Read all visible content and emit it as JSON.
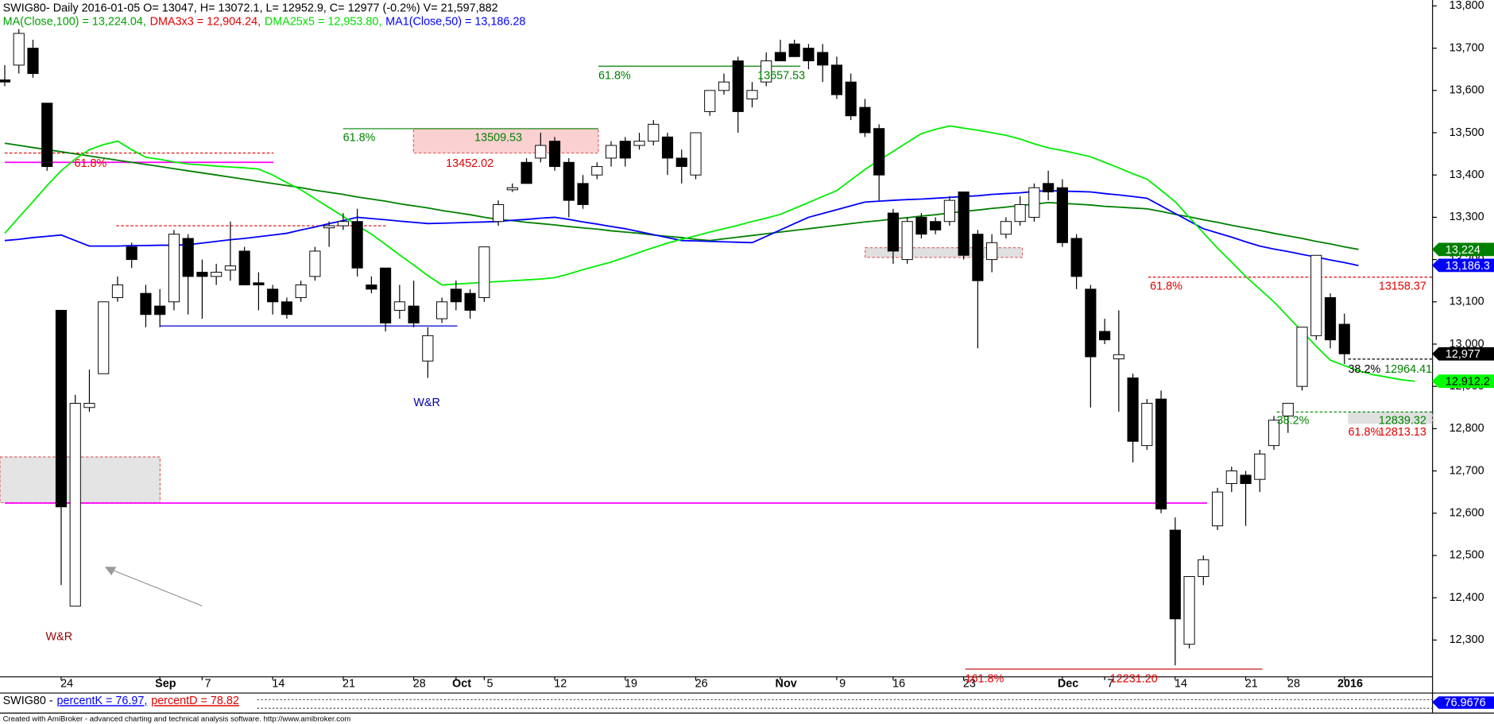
{
  "chart_data": {
    "type": "candlestick",
    "header": "SWIG80- Daily 2016-01-05 O= 13047, H= 13072.1, L= 12952.9, C= 12977 (-0.2%) V= 21,597,882",
    "legend": [
      {
        "text": "MA(Close,100) = 13,224.04,",
        "color": "#00a000"
      },
      {
        "text": "DMA3x3 = 12,904.24,",
        "color": "#e00000"
      },
      {
        "text": "DMA25x5 = 12,953.80,",
        "color": "#00dd00"
      },
      {
        "text": "MA1(Close,50) = 13,186.28",
        "color": "#0000ff"
      }
    ],
    "categories": [
      null,
      null,
      null,
      null,
      "24",
      null,
      null,
      null,
      null,
      null,
      null,
      "Sep",
      null,
      null,
      "7",
      null,
      null,
      null,
      null,
      "14",
      null,
      null,
      null,
      null,
      "21",
      null,
      null,
      null,
      null,
      "28",
      null,
      null,
      "Oct",
      null,
      "5",
      null,
      null,
      null,
      null,
      "12",
      null,
      null,
      null,
      null,
      "19",
      null,
      null,
      null,
      null,
      "26",
      null,
      null,
      null,
      null,
      null,
      "Nov",
      null,
      null,
      null,
      "9",
      null,
      null,
      null,
      "16",
      null,
      null,
      null,
      null,
      "23",
      null,
      null,
      null,
      null,
      null,
      null,
      "Dec",
      null,
      null,
      "7",
      null,
      null,
      null,
      null,
      "14",
      null,
      null,
      null,
      null,
      "21",
      null,
      null,
      "28",
      null,
      null,
      null,
      "2016",
      null,
      null,
      null,
      null,
      null
    ],
    "open": [
      13625,
      13660,
      13700,
      13570,
      13080,
      12380,
      12850,
      12930,
      13110,
      13230,
      13120,
      13090,
      13100,
      13250,
      13170,
      13160,
      13175,
      13220,
      13145,
      13130,
      13100,
      13110,
      13160,
      13275,
      13280,
      13290,
      13140,
      13180,
      13080,
      13090,
      12960,
      13060,
      13130,
      13120,
      13110,
      13290,
      13365,
      13430,
      13440,
      13480,
      13430,
      13380,
      13400,
      13440,
      13480,
      13470,
      13480,
      13490,
      13440,
      13400,
      13550,
      13600,
      13670,
      13580,
      13620,
      13690,
      13710,
      13700,
      13690,
      13660,
      13620,
      13560,
      13510,
      13310,
      13200,
      13300,
      13290,
      13290,
      13360,
      13260,
      13200,
      13260,
      13290,
      13300,
      13380,
      13370,
      13250,
      13130,
      13030,
      12965,
      12920,
      12760,
      12870,
      12560,
      12290,
      12450,
      12570,
      12670,
      12690,
      12680,
      12760,
      12830,
      12900,
      13020,
      13110,
      13047,
      null,
      null,
      null,
      null,
      null
    ],
    "high": [
      13660,
      13745,
      13720,
      13570,
      13080,
      12880,
      12940,
      13100,
      13160,
      13240,
      13140,
      13130,
      13270,
      13260,
      13200,
      13190,
      13290,
      13230,
      13170,
      13140,
      13110,
      13150,
      13230,
      13290,
      13310,
      13320,
      13160,
      13180,
      13140,
      13150,
      13040,
      13110,
      13150,
      13130,
      13230,
      13340,
      13380,
      13440,
      13500,
      13490,
      13440,
      13400,
      13430,
      13480,
      13490,
      13500,
      13530,
      13500,
      13460,
      13500,
      13600,
      13640,
      13680,
      13620,
      13690,
      13720,
      13720,
      13710,
      13710,
      13680,
      13640,
      13580,
      13520,
      13320,
      13300,
      13310,
      13300,
      13350,
      13360,
      13270,
      13260,
      13300,
      13350,
      13380,
      13410,
      13390,
      13260,
      13140,
      13060,
      13080,
      12930,
      12870,
      12890,
      12590,
      12450,
      12500,
      12660,
      12710,
      12700,
      12750,
      12830,
      12860,
      13040,
      13210,
      13120,
      13072.1,
      null,
      null,
      null,
      null,
      null
    ],
    "low": [
      13610,
      13640,
      13630,
      13410,
      12430,
      12380,
      12840,
      12930,
      13100,
      13180,
      13040,
      13040,
      13080,
      13070,
      13060,
      13140,
      13150,
      13140,
      13080,
      13070,
      13060,
      13100,
      13150,
      13230,
      13270,
      13160,
      13120,
      13030,
      13060,
      13040,
      12920,
      13050,
      13080,
      13060,
      13100,
      13280,
      13360,
      13380,
      13430,
      13410,
      13300,
      13320,
      13390,
      13420,
      13420,
      13460,
      13470,
      13400,
      13380,
      13390,
      13540,
      13590,
      13500,
      13560,
      13610,
      13670,
      13680,
      13650,
      13620,
      13580,
      13530,
      13490,
      13340,
      13190,
      13190,
      13250,
      13260,
      13280,
      13200,
      12990,
      13170,
      13250,
      13280,
      13290,
      13340,
      13230,
      13130,
      12850,
      13000,
      12840,
      12720,
      12750,
      12600,
      12240,
      12280,
      12430,
      12560,
      12650,
      12570,
      12650,
      12750,
      12790,
      12890,
      13010,
      12990,
      12952.9,
      null,
      null,
      null,
      null,
      null
    ],
    "close": [
      13620,
      13735,
      13640,
      13420,
      12615,
      12860,
      12860,
      13100,
      13140,
      13200,
      13070,
      13070,
      13260,
      13160,
      13160,
      13170,
      13185,
      13140,
      13140,
      13100,
      13070,
      13140,
      13220,
      13280,
      13290,
      13180,
      13130,
      13050,
      13100,
      13050,
      13020,
      13100,
      13100,
      13080,
      13230,
      13330,
      13370,
      13380,
      13470,
      13420,
      13340,
      13330,
      13420,
      13470,
      13440,
      13480,
      13520,
      13440,
      13420,
      13500,
      13600,
      13620,
      13550,
      13600,
      13670,
      13670,
      13680,
      13670,
      13660,
      13590,
      13540,
      13500,
      13400,
      13220,
      13290,
      13260,
      13270,
      13340,
      13210,
      13150,
      13240,
      13290,
      13330,
      13370,
      13360,
      13240,
      13160,
      12970,
      13010,
      12975,
      12770,
      12860,
      12610,
      12350,
      12450,
      12490,
      12650,
      12700,
      12670,
      12740,
      12820,
      12860,
      13040,
      13210,
      13010,
      12977,
      null,
      null,
      null,
      null,
      null
    ],
    "up_color": "#ffffff",
    "down_color": "#000000",
    "lines": [
      {
        "color": "#008000",
        "values": [
          13475,
          13470,
          13465,
          13460,
          13455,
          13450,
          13445,
          13440,
          13435,
          13430,
          13425,
          13420,
          13415,
          13410,
          13405,
          13400,
          13395,
          13390,
          13385,
          13380,
          13375,
          13370,
          13364,
          13359,
          13354,
          13348,
          13343,
          13338,
          13332,
          13327,
          13322,
          13316,
          13311,
          13306,
          13300,
          13295,
          13292,
          13288,
          13285,
          13282,
          13278,
          13275,
          13272,
          13268,
          13265,
          13262,
          13258,
          13255,
          13252,
          13248,
          13245,
          13249,
          13253,
          13257,
          13261,
          13265,
          13269,
          13273,
          13277,
          13281,
          13285,
          13289,
          13292,
          13296,
          13299,
          13303,
          13306,
          13310,
          13314,
          13317,
          13321,
          13324,
          13328,
          13331,
          13335,
          13333,
          13331,
          13329,
          13326,
          13324,
          13322,
          13320,
          13314,
          13307,
          13301,
          13294,
          13288,
          13281,
          13275,
          13269,
          13262,
          13256,
          13250,
          13243,
          13237,
          13230,
          13224,
          null,
          null,
          null,
          null
        ]
      },
      {
        "color": "#0000ff",
        "values": [
          13245,
          13248,
          13252,
          13255,
          13258,
          13245,
          13232,
          13232,
          13232,
          13233,
          13233,
          13234,
          13234,
          13235,
          13239,
          13243,
          13247,
          13250,
          13254,
          13258,
          13262,
          13270,
          13277,
          13285,
          13292,
          13300,
          13297,
          13294,
          13291,
          13288,
          13285,
          13286,
          13287,
          13288,
          13289,
          13290,
          13293,
          13295,
          13298,
          13300,
          13295,
          13289,
          13284,
          13278,
          13273,
          13266,
          13259,
          13252,
          13245,
          13244,
          13243,
          13242,
          13241,
          13240,
          13255,
          13270,
          13285,
          13300,
          13309,
          13318,
          13327,
          13336,
          13338,
          13340,
          13342,
          13343,
          13345,
          13347,
          13349,
          13351,
          13354,
          13356,
          13358,
          13361,
          13363,
          13362,
          13361,
          13360,
          13356,
          13353,
          13349,
          13345,
          13327,
          13309,
          13291,
          13273,
          13263,
          13253,
          13242,
          13232,
          13225,
          13219,
          13212,
          13206,
          13199,
          13193,
          13186,
          null,
          null,
          null,
          null
        ]
      },
      {
        "color": "#00ee00",
        "values": [
          13262,
          13300,
          13337,
          13375,
          13410,
          13438,
          13460,
          13472,
          13480,
          13460,
          13442,
          13437,
          13431,
          13426,
          13424,
          13421,
          13419,
          13417,
          13414,
          13400,
          13382,
          13365,
          13344,
          13323,
          13302,
          13281,
          13260,
          13236,
          13211,
          13187,
          13162,
          13140,
          13142,
          13144,
          13146,
          13148,
          13150,
          13152,
          13154,
          13157,
          13166,
          13176,
          13185,
          13194,
          13205,
          13217,
          13228,
          13239,
          13248,
          13256,
          13265,
          13273,
          13281,
          13290,
          13298,
          13307,
          13321,
          13335,
          13349,
          13363,
          13388,
          13413,
          13435,
          13456,
          13477,
          13498,
          13508,
          13516,
          13511,
          13506,
          13500,
          13494,
          13485,
          13474,
          13464,
          13458,
          13451,
          13443,
          13430,
          13417,
          13403,
          13390,
          13364,
          13337,
          13300,
          13263,
          13227,
          13194,
          13160,
          13130,
          13100,
          13065,
          13030,
          12995,
          12962,
          12949,
          12937,
          12928,
          12922,
          12916,
          12912
        ]
      }
    ],
    "ylim": [
      12214,
      13814
    ],
    "yticks": [
      {
        "value": 12300,
        "label": "12,300"
      },
      {
        "value": 12400,
        "label": "12,400"
      },
      {
        "value": 12500,
        "label": "12,500"
      },
      {
        "value": 12600,
        "label": "12,600"
      },
      {
        "value": 12700,
        "label": "12,700"
      },
      {
        "value": 12800,
        "label": "12,800"
      },
      {
        "value": 12900,
        "label": "12,900"
      },
      {
        "value": 13000,
        "label": "13,000"
      },
      {
        "value": 13100,
        "label": "13,100"
      },
      {
        "value": 13200,
        "label": "13,200"
      },
      {
        "value": 13300,
        "label": "13,300"
      },
      {
        "value": 13400,
        "label": "13,400"
      },
      {
        "value": 13500,
        "label": "13,500"
      },
      {
        "value": 13600,
        "label": "13,600"
      },
      {
        "value": 13700,
        "label": "13,700"
      },
      {
        "value": 13800,
        "label": "13,800"
      }
    ],
    "price_tags": [
      {
        "value": 13224,
        "label": "13,224",
        "bg": "#008000",
        "fg": "#ffffff"
      },
      {
        "value": 13186.3,
        "label": "13,186.3",
        "bg": "#0000ff",
        "fg": "#ffffff"
      },
      {
        "value": 12977,
        "label": "12,977",
        "bg": "#000000",
        "fg": "#ffffff"
      },
      {
        "value": 12912.2,
        "label": "12,912.2",
        "bg": "#00ff00",
        "fg": "#000000"
      }
    ],
    "levels": [
      {
        "value": 13509.53,
        "color": "#008000",
        "dash": false
      },
      {
        "value": 13452.02,
        "color": "#e00000",
        "dash": true
      },
      {
        "value": 13430,
        "color": "#ff00ff",
        "dash": false
      },
      {
        "value": 13280,
        "color": "#e00000",
        "dash": true
      },
      {
        "value": 13043,
        "color": "#0000cc",
        "dash": false
      },
      {
        "value": 12624,
        "color": "#ff00ff",
        "dash": false
      },
      {
        "value": 13657.53,
        "color": "#008000",
        "dash": false
      },
      {
        "value": 13158.37,
        "color": "#e00000",
        "dash": true
      },
      {
        "value": 12964.41,
        "color": "#000000",
        "dash": true
      },
      {
        "value": 12839.32,
        "color": "#008000",
        "dash": true
      },
      {
        "value": 12231.2,
        "color": "#c00000",
        "dash": false
      }
    ],
    "boxes": [
      {
        "from": 13509.53,
        "to": 13452.02,
        "fill": "#fbd0d0",
        "stroke": "#e06060"
      },
      {
        "from": 12733,
        "to": 12625,
        "fill": "#e4e4e4",
        "stroke": "#e06060"
      },
      {
        "from": 13228,
        "to": 13205,
        "fill": "#e0e0e0",
        "stroke": "#e06060"
      },
      {
        "from": 12839.32,
        "to": 12812,
        "fill": "#e0e0e0",
        "stroke": "#e0e0e0"
      }
    ],
    "annotations": [
      {
        "text": "61.8%",
        "color": "#e00000"
      },
      {
        "text": "61.8%",
        "color": "#008000"
      },
      {
        "text": "13509.53",
        "color": "#008000"
      },
      {
        "text": "13452.02",
        "color": "#e00000"
      },
      {
        "text": "61.8%",
        "color": "#008000"
      },
      {
        "text": "13657.53",
        "color": "#008000"
      },
      {
        "text": "W&R",
        "color": "#0000aa"
      },
      {
        "text": "W&R",
        "color": "#990000"
      },
      {
        "text": "61.8%",
        "color": "#e00000"
      },
      {
        "text": "13158.37",
        "color": "#e00000"
      },
      {
        "text": "38.2%",
        "color": "#000000"
      },
      {
        "text": "12964.41",
        "color": "#008000"
      },
      {
        "text": "38.2%",
        "color": "#008000"
      },
      {
        "text": "12839.32",
        "color": "#008000"
      },
      {
        "text": "61.8%",
        "color": "#e00000"
      },
      {
        "text": "12813.13",
        "color": "#e00000"
      },
      {
        "text": "161.8%",
        "color": "#e00000"
      },
      {
        "text": "12231.20",
        "color": "#e00000"
      }
    ],
    "indicator": {
      "title": "SWIG80 -",
      "items": [
        {
          "text": "percentK = 76.97,",
          "color": "#0000ff"
        },
        {
          "text": "percentD = 78.82",
          "color": "#e00000"
        }
      ],
      "tag": 76.9676
    },
    "footer": "Created with AmiBroker - advanced charting and technical analysis software. http://www.amibroker.com"
  }
}
